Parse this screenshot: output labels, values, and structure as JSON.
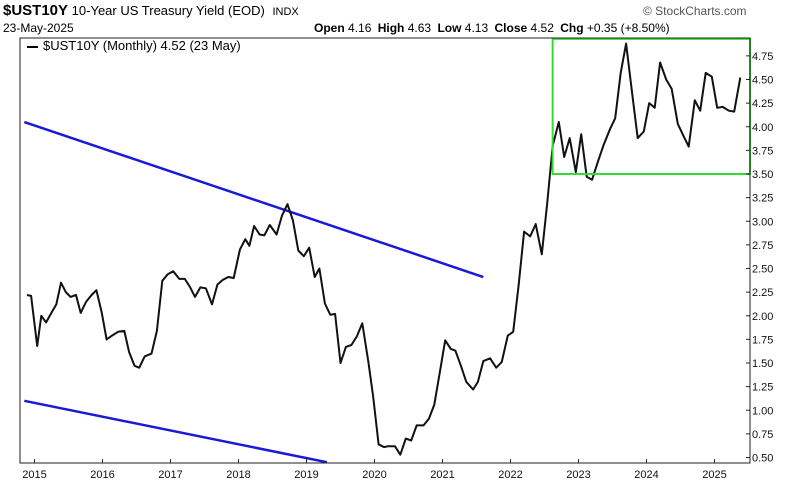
{
  "header": {
    "symbol": "$UST10Y",
    "description": "10-Year US Treasury Yield (EOD)",
    "exchange": "INDX",
    "date": "23-May-2025",
    "open_label": "Open",
    "open": "4.16",
    "high_label": "High",
    "high": "4.63",
    "low_label": "Low",
    "low": "4.13",
    "close_label": "Close",
    "close": "4.52",
    "chg_label": "Chg",
    "chg": "+0.35 (+8.50%)",
    "brand": "© StockCharts.com"
  },
  "legend": {
    "text": "$UST10Y (Monthly) 4.52 (23 May)"
  },
  "chart_data": {
    "type": "line",
    "title": "$UST10Y 10-Year US Treasury Yield (EOD)",
    "xlim": [
      2014.85,
      2025.6
    ],
    "ylim": [
      0.5,
      4.95
    ],
    "xticks": [
      2015,
      2016,
      2017,
      2018,
      2019,
      2020,
      2021,
      2022,
      2023,
      2024,
      2025
    ],
    "yticks": [
      "0.50",
      "0.75",
      "1.00",
      "1.25",
      "1.50",
      "1.75",
      "2.00",
      "2.25",
      "2.50",
      "2.75",
      "3.00",
      "3.25",
      "3.50",
      "3.75",
      "4.00",
      "4.25",
      "4.50",
      "4.75"
    ],
    "grid": false,
    "series": [
      {
        "name": "$UST10Y (Monthly)",
        "color": "#111111",
        "points": [
          [
            2014.89,
            2.22
          ],
          [
            2014.95,
            2.21
          ],
          [
            2015.04,
            1.68
          ],
          [
            2015.1,
            2.0
          ],
          [
            2015.17,
            1.93
          ],
          [
            2015.24,
            2.02
          ],
          [
            2015.32,
            2.12
          ],
          [
            2015.39,
            2.35
          ],
          [
            2015.46,
            2.25
          ],
          [
            2015.53,
            2.2
          ],
          [
            2015.61,
            2.22
          ],
          [
            2015.68,
            2.03
          ],
          [
            2015.76,
            2.15
          ],
          [
            2015.84,
            2.22
          ],
          [
            2015.91,
            2.27
          ],
          [
            2015.99,
            2.03
          ],
          [
            2016.06,
            1.75
          ],
          [
            2016.14,
            1.79
          ],
          [
            2016.23,
            1.83
          ],
          [
            2016.32,
            1.84
          ],
          [
            2016.39,
            1.62
          ],
          [
            2016.47,
            1.47
          ],
          [
            2016.54,
            1.45
          ],
          [
            2016.62,
            1.57
          ],
          [
            2016.72,
            1.6
          ],
          [
            2016.8,
            1.84
          ],
          [
            2016.88,
            2.37
          ],
          [
            2016.96,
            2.44
          ],
          [
            2017.04,
            2.47
          ],
          [
            2017.13,
            2.39
          ],
          [
            2017.21,
            2.39
          ],
          [
            2017.29,
            2.3
          ],
          [
            2017.36,
            2.2
          ],
          [
            2017.44,
            2.3
          ],
          [
            2017.52,
            2.29
          ],
          [
            2017.61,
            2.12
          ],
          [
            2017.69,
            2.33
          ],
          [
            2017.77,
            2.38
          ],
          [
            2017.85,
            2.41
          ],
          [
            2017.93,
            2.4
          ],
          [
            2018.02,
            2.7
          ],
          [
            2018.1,
            2.81
          ],
          [
            2018.16,
            2.74
          ],
          [
            2018.23,
            2.95
          ],
          [
            2018.31,
            2.86
          ],
          [
            2018.38,
            2.85
          ],
          [
            2018.46,
            2.96
          ],
          [
            2018.56,
            2.86
          ],
          [
            2018.64,
            3.06
          ],
          [
            2018.72,
            3.18
          ],
          [
            2018.8,
            3.01
          ],
          [
            2018.88,
            2.69
          ],
          [
            2018.96,
            2.63
          ],
          [
            2019.04,
            2.72
          ],
          [
            2019.12,
            2.41
          ],
          [
            2019.19,
            2.5
          ],
          [
            2019.27,
            2.13
          ],
          [
            2019.35,
            2.01
          ],
          [
            2019.42,
            2.02
          ],
          [
            2019.5,
            1.5
          ],
          [
            2019.58,
            1.67
          ],
          [
            2019.66,
            1.69
          ],
          [
            2019.74,
            1.78
          ],
          [
            2019.82,
            1.92
          ],
          [
            2019.91,
            1.51
          ],
          [
            2019.98,
            1.15
          ],
          [
            2020.06,
            0.64
          ],
          [
            2020.14,
            0.61
          ],
          [
            2020.2,
            0.62
          ],
          [
            2020.3,
            0.62
          ],
          [
            2020.38,
            0.53
          ],
          [
            2020.46,
            0.7
          ],
          [
            2020.54,
            0.68
          ],
          [
            2020.62,
            0.84
          ],
          [
            2020.72,
            0.84
          ],
          [
            2020.8,
            0.91
          ],
          [
            2020.88,
            1.06
          ],
          [
            2020.96,
            1.4
          ],
          [
            2021.04,
            1.74
          ],
          [
            2021.12,
            1.65
          ],
          [
            2021.19,
            1.63
          ],
          [
            2021.27,
            1.47
          ],
          [
            2021.35,
            1.3
          ],
          [
            2021.45,
            1.22
          ],
          [
            2021.52,
            1.3
          ],
          [
            2021.6,
            1.52
          ],
          [
            2021.7,
            1.55
          ],
          [
            2021.79,
            1.45
          ],
          [
            2021.87,
            1.51
          ],
          [
            2021.96,
            1.79
          ],
          [
            2022.04,
            1.83
          ],
          [
            2022.12,
            2.33
          ],
          [
            2022.2,
            2.89
          ],
          [
            2022.29,
            2.84
          ],
          [
            2022.37,
            2.97
          ],
          [
            2022.46,
            2.65
          ],
          [
            2022.54,
            3.19
          ],
          [
            2022.62,
            3.8
          ],
          [
            2022.71,
            4.05
          ],
          [
            2022.79,
            3.68
          ],
          [
            2022.87,
            3.88
          ],
          [
            2022.96,
            3.52
          ],
          [
            2023.04,
            3.92
          ],
          [
            2023.12,
            3.47
          ],
          [
            2023.2,
            3.44
          ],
          [
            2023.29,
            3.64
          ],
          [
            2023.37,
            3.81
          ],
          [
            2023.46,
            3.97
          ],
          [
            2023.54,
            4.09
          ],
          [
            2023.62,
            4.57
          ],
          [
            2023.7,
            4.88
          ],
          [
            2023.79,
            4.35
          ],
          [
            2023.87,
            3.88
          ],
          [
            2023.96,
            3.95
          ],
          [
            2024.04,
            4.25
          ],
          [
            2024.12,
            4.2
          ],
          [
            2024.2,
            4.68
          ],
          [
            2024.29,
            4.5
          ],
          [
            2024.37,
            4.4
          ],
          [
            2024.46,
            4.03
          ],
          [
            2024.54,
            3.91
          ],
          [
            2024.62,
            3.79
          ],
          [
            2024.71,
            4.28
          ],
          [
            2024.79,
            4.17
          ],
          [
            2024.87,
            4.57
          ],
          [
            2024.96,
            4.53
          ],
          [
            2025.04,
            4.2
          ],
          [
            2025.12,
            4.21
          ],
          [
            2025.21,
            4.17
          ],
          [
            2025.29,
            4.16
          ],
          [
            2025.38,
            4.52
          ]
        ]
      }
    ],
    "trend_lines": [
      {
        "color": "#1a1ad6",
        "from": [
          2014.85,
          4.05
        ],
        "to": [
          2021.6,
          2.41
        ]
      },
      {
        "color": "#1a1ad6",
        "from": [
          2014.85,
          1.1
        ],
        "to": [
          2019.3,
          0.45
        ]
      }
    ],
    "highlight_box": {
      "color": "#33dd33",
      "x0": 2022.62,
      "x1": 2025.6,
      "y0": 3.5,
      "y1": 4.93
    }
  }
}
